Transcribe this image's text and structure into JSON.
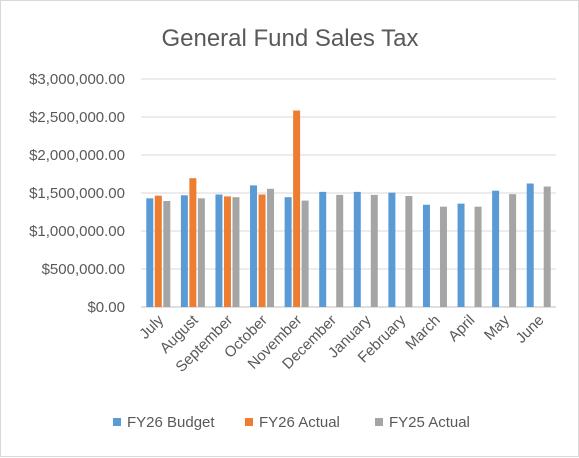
{
  "chart_data": {
    "type": "bar",
    "title": "General Fund Sales Tax",
    "xlabel": "",
    "ylabel": "",
    "categories": [
      "July",
      "August",
      "September",
      "October",
      "November",
      "December",
      "January",
      "February",
      "March",
      "April",
      "May",
      "June"
    ],
    "ylim": [
      0,
      3000000
    ],
    "yticks": [
      0,
      500000,
      1000000,
      1500000,
      2000000,
      2500000,
      3000000
    ],
    "ytick_labels": [
      "$0.00",
      "$500,000.00",
      "$1,000,000.00",
      "$1,500,000.00",
      "$2,000,000.00",
      "$2,500,000.00",
      "$3,000,000.00"
    ],
    "grid": true,
    "legend_position": "bottom",
    "series": [
      {
        "name": "FY26 Budget",
        "color": "#5b9bd5",
        "values": [
          1430000,
          1470000,
          1480000,
          1600000,
          1445000,
          1515000,
          1515000,
          1505000,
          1345000,
          1360000,
          1530000,
          1625000
        ]
      },
      {
        "name": "FY26 Actual",
        "color": "#ed7d31",
        "values": [
          1465000,
          1695000,
          1455000,
          1480000,
          2585000,
          null,
          null,
          null,
          null,
          null,
          null,
          null
        ]
      },
      {
        "name": "FY25 Actual",
        "color": "#a5a5a5",
        "values": [
          1395000,
          1430000,
          1445000,
          1555000,
          1400000,
          1475000,
          1475000,
          1460000,
          1320000,
          1320000,
          1485000,
          1585000
        ]
      }
    ]
  }
}
